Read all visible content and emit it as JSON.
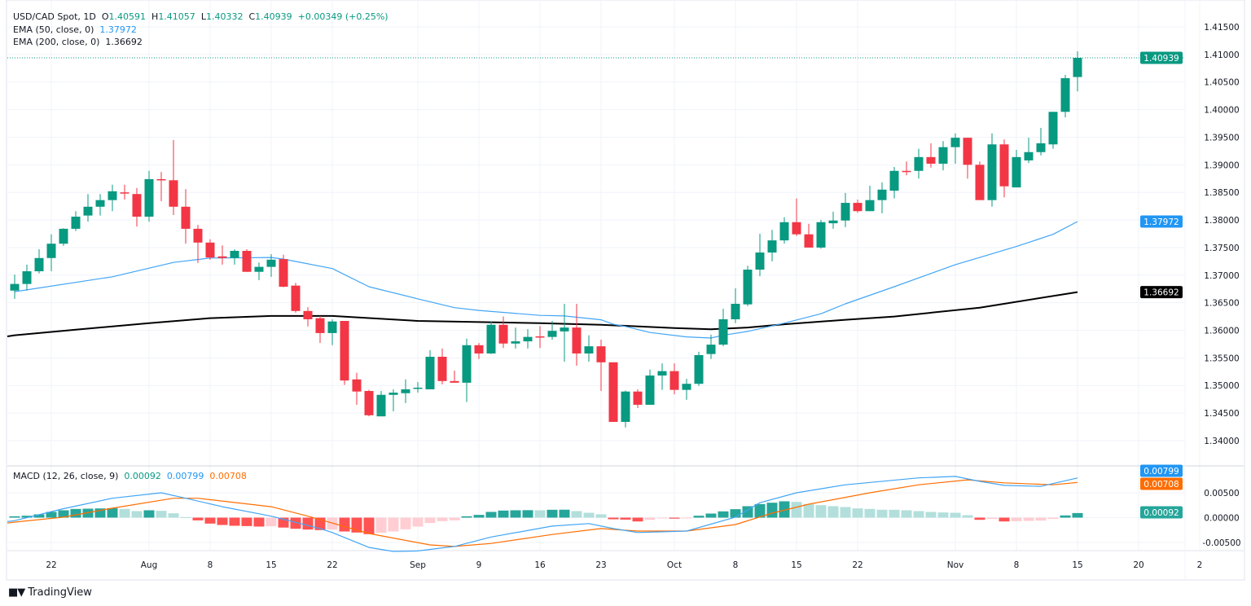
{
  "header": {
    "symbol": "USD/CAD Spot, 1D",
    "o_label": "O",
    "o": "1.40591",
    "h_label": "H",
    "h": "1.41057",
    "l_label": "L",
    "l": "1.40332",
    "c_label": "C",
    "c": "1.40939",
    "change": "+0.00349 (+0.25%)"
  },
  "ema50": {
    "label": "EMA (50, close, 0)",
    "value": "1.37972",
    "color": "#2196f3"
  },
  "ema200": {
    "label": "EMA (200, close, 0)",
    "value": "1.36692",
    "color": "#000000"
  },
  "macd_legend": {
    "label": "MACD (12, 26, close, 9)",
    "hist": "0.00092",
    "macd": "0.00799",
    "signal": "0.00708"
  },
  "footer": {
    "brand": "TradingView",
    "logo_text": "TV"
  },
  "colors": {
    "up": "#089981",
    "down": "#f23645",
    "hist_up_strong": "#26a69a",
    "hist_up_weak": "#b2dfdb",
    "hist_down_strong": "#ff5252",
    "hist_down_weak": "#ffcdd2",
    "macd": "#2196f3",
    "signal": "#ff6d00"
  },
  "chart_data": [
    {
      "type": "candlestick",
      "title": "USD/CAD Spot, 1D",
      "ylim": [
        1.3375,
        1.4175
      ],
      "y_ticks": [
        "1.41500",
        "1.41000",
        "1.40500",
        "1.40000",
        "1.39500",
        "1.39000",
        "1.38500",
        "1.38000",
        "1.37500",
        "1.37000",
        "1.36500",
        "1.36000",
        "1.35500",
        "1.35000",
        "1.34500",
        "1.34000"
      ],
      "x_ticks": [
        {
          "index": 3,
          "label": "22"
        },
        {
          "index": 11,
          "label": "Aug"
        },
        {
          "index": 16,
          "label": "8"
        },
        {
          "index": 21,
          "label": "15"
        },
        {
          "index": 26,
          "label": "22"
        },
        {
          "index": 33,
          "label": "Sep"
        },
        {
          "index": 38,
          "label": "9"
        },
        {
          "index": 43,
          "label": "16"
        },
        {
          "index": 48,
          "label": "23"
        },
        {
          "index": 54,
          "label": "Oct"
        },
        {
          "index": 59,
          "label": "8"
        },
        {
          "index": 64,
          "label": "15"
        },
        {
          "index": 69,
          "label": "22"
        },
        {
          "index": 77,
          "label": "Nov"
        },
        {
          "index": 82,
          "label": "8"
        },
        {
          "index": 87,
          "label": "15"
        },
        {
          "index": 92,
          "label": "20"
        },
        {
          "index": 97,
          "label": "2"
        }
      ],
      "ohlc": [
        [
          1.3672,
          1.3701,
          1.3657,
          1.3684
        ],
        [
          1.3684,
          1.3719,
          1.3672,
          1.3707
        ],
        [
          1.3707,
          1.3747,
          1.3703,
          1.3731
        ],
        [
          1.3731,
          1.3774,
          1.3707,
          1.3757
        ],
        [
          1.3757,
          1.3785,
          1.3753,
          1.3784
        ],
        [
          1.3784,
          1.3816,
          1.378,
          1.3806
        ],
        [
          1.3808,
          1.3847,
          1.3797,
          1.3824
        ],
        [
          1.3824,
          1.3847,
          1.3808,
          1.3836
        ],
        [
          1.3836,
          1.3864,
          1.3816,
          1.3852
        ],
        [
          1.385,
          1.3864,
          1.3837,
          1.3849
        ],
        [
          1.3847,
          1.3858,
          1.3788,
          1.3806
        ],
        [
          1.3806,
          1.3889,
          1.3797,
          1.3874
        ],
        [
          1.3874,
          1.3887,
          1.3834,
          1.3872
        ],
        [
          1.3872,
          1.3945,
          1.3809,
          1.3824
        ],
        [
          1.3824,
          1.3856,
          1.3757,
          1.3784
        ],
        [
          1.3784,
          1.3791,
          1.3722,
          1.3759
        ],
        [
          1.3759,
          1.3765,
          1.3728,
          1.3732
        ],
        [
          1.3734,
          1.3754,
          1.3719,
          1.3731
        ],
        [
          1.3731,
          1.3747,
          1.3719,
          1.3744
        ],
        [
          1.3744,
          1.3747,
          1.3706,
          1.3706
        ],
        [
          1.3706,
          1.3723,
          1.3691,
          1.3715
        ],
        [
          1.3715,
          1.3738,
          1.3697,
          1.3728
        ],
        [
          1.3729,
          1.3737,
          1.3678,
          1.3679
        ],
        [
          1.3681,
          1.3686,
          1.3632,
          1.3635
        ],
        [
          1.3635,
          1.3642,
          1.3607,
          1.362
        ],
        [
          1.3622,
          1.3626,
          1.3577,
          1.3595
        ],
        [
          1.3595,
          1.362,
          1.3573,
          1.3616
        ],
        [
          1.3617,
          1.3617,
          1.3501,
          1.3509
        ],
        [
          1.3511,
          1.3523,
          1.3465,
          1.3489
        ],
        [
          1.349,
          1.3492,
          1.3444,
          1.3446
        ],
        [
          1.3444,
          1.349,
          1.3444,
          1.3483
        ],
        [
          1.3483,
          1.3493,
          1.3453,
          1.3487
        ],
        [
          1.3486,
          1.3511,
          1.3468,
          1.3493
        ],
        [
          1.3495,
          1.3506,
          1.3487,
          1.3496
        ],
        [
          1.3493,
          1.3564,
          1.3493,
          1.3552
        ],
        [
          1.3552,
          1.3567,
          1.3502,
          1.3508
        ],
        [
          1.3508,
          1.3527,
          1.3505,
          1.3505
        ],
        [
          1.3505,
          1.3585,
          1.347,
          1.3573
        ],
        [
          1.3573,
          1.3577,
          1.3548,
          1.3558
        ],
        [
          1.3558,
          1.3616,
          1.3557,
          1.361
        ],
        [
          1.361,
          1.3625,
          1.3568,
          1.3576
        ],
        [
          1.3576,
          1.3605,
          1.3567,
          1.358
        ],
        [
          1.358,
          1.3602,
          1.3567,
          1.3588
        ],
        [
          1.3589,
          1.3608,
          1.3568,
          1.3588
        ],
        [
          1.3588,
          1.3617,
          1.3583,
          1.3599
        ],
        [
          1.3598,
          1.3648,
          1.3543,
          1.3605
        ],
        [
          1.3605,
          1.3648,
          1.3536,
          1.3558
        ],
        [
          1.3558,
          1.3591,
          1.3543,
          1.3571
        ],
        [
          1.3571,
          1.3583,
          1.349,
          1.3542
        ],
        [
          1.3542,
          1.3542,
          1.3434,
          1.3434
        ],
        [
          1.3434,
          1.3491,
          1.3424,
          1.3489
        ],
        [
          1.3489,
          1.3493,
          1.3459,
          1.3465
        ],
        [
          1.3465,
          1.3529,
          1.3465,
          1.3518
        ],
        [
          1.3518,
          1.354,
          1.3492,
          1.3526
        ],
        [
          1.3526,
          1.354,
          1.3484,
          1.3492
        ],
        [
          1.3492,
          1.3512,
          1.3474,
          1.3503
        ],
        [
          1.3503,
          1.3561,
          1.3499,
          1.3555
        ],
        [
          1.3557,
          1.3592,
          1.3548,
          1.3574
        ],
        [
          1.3574,
          1.3639,
          1.3571,
          1.362
        ],
        [
          1.362,
          1.3676,
          1.3613,
          1.3648
        ],
        [
          1.3647,
          1.3717,
          1.3644,
          1.371
        ],
        [
          1.371,
          1.3775,
          1.3698,
          1.3741
        ],
        [
          1.3741,
          1.3782,
          1.3725,
          1.3763
        ],
        [
          1.3763,
          1.3805,
          1.3757,
          1.3796
        ],
        [
          1.3796,
          1.3839,
          1.3771,
          1.3774
        ],
        [
          1.3774,
          1.3793,
          1.375,
          1.375
        ],
        [
          1.375,
          1.38,
          1.3748,
          1.3796
        ],
        [
          1.3794,
          1.3815,
          1.3784,
          1.3799
        ],
        [
          1.3799,
          1.3849,
          1.3787,
          1.3831
        ],
        [
          1.3831,
          1.3837,
          1.3813,
          1.3816
        ],
        [
          1.3816,
          1.3862,
          1.3816,
          1.3836
        ],
        [
          1.3836,
          1.3868,
          1.3812,
          1.3855
        ],
        [
          1.3853,
          1.3896,
          1.3839,
          1.3889
        ],
        [
          1.3889,
          1.3906,
          1.3881,
          1.3887
        ],
        [
          1.3889,
          1.3929,
          1.3875,
          1.3914
        ],
        [
          1.3914,
          1.3939,
          1.3895,
          1.3902
        ],
        [
          1.3902,
          1.3943,
          1.389,
          1.3932
        ],
        [
          1.3932,
          1.3957,
          1.3902,
          1.3949
        ],
        [
          1.3949,
          1.3949,
          1.3875,
          1.39
        ],
        [
          1.39,
          1.3906,
          1.3836,
          1.3836
        ],
        [
          1.3836,
          1.3957,
          1.3824,
          1.3937
        ],
        [
          1.3937,
          1.3946,
          1.3841,
          1.3861
        ],
        [
          1.3859,
          1.3927,
          1.3859,
          1.3914
        ],
        [
          1.3908,
          1.3949,
          1.3903,
          1.3923
        ],
        [
          1.3923,
          1.3967,
          1.3917,
          1.3939
        ],
        [
          1.3937,
          1.3996,
          1.3929,
          1.3996
        ],
        [
          1.3996,
          1.4063,
          1.3986,
          1.4057
        ],
        [
          1.40591,
          1.41057,
          1.40332,
          1.40939
        ]
      ],
      "ema50": [
        [
          0,
          1.367
        ],
        [
          8,
          1.3697
        ],
        [
          13,
          1.3723
        ],
        [
          16,
          1.3731
        ],
        [
          21,
          1.3732
        ],
        [
          22,
          1.3729
        ],
        [
          26,
          1.3712
        ],
        [
          29,
          1.3679
        ],
        [
          33,
          1.3657
        ],
        [
          36,
          1.3641
        ],
        [
          38,
          1.3636
        ],
        [
          43,
          1.3627
        ],
        [
          45,
          1.3626
        ],
        [
          48,
          1.3619
        ],
        [
          49,
          1.3611
        ],
        [
          50,
          1.3607
        ],
        [
          52,
          1.3596
        ],
        [
          55,
          1.3588
        ],
        [
          57,
          1.3586
        ],
        [
          58,
          1.3591
        ],
        [
          60,
          1.3598
        ],
        [
          63,
          1.3613
        ],
        [
          66,
          1.363
        ],
        [
          68,
          1.3648
        ],
        [
          72,
          1.3679
        ],
        [
          77,
          1.3719
        ],
        [
          79,
          1.3732
        ],
        [
          82,
          1.3752
        ],
        [
          85,
          1.3774
        ],
        [
          87,
          1.37972
        ]
      ],
      "ema200": [
        [
          -1,
          1.3589
        ],
        [
          0,
          1.3591
        ],
        [
          5,
          1.3601
        ],
        [
          11,
          1.3613
        ],
        [
          16,
          1.3622
        ],
        [
          21,
          1.3626
        ],
        [
          26,
          1.3626
        ],
        [
          33,
          1.3617
        ],
        [
          43,
          1.3613
        ],
        [
          48,
          1.361
        ],
        [
          54,
          1.3604
        ],
        [
          57,
          1.3602
        ],
        [
          60,
          1.3605
        ],
        [
          63,
          1.3611
        ],
        [
          68,
          1.3619
        ],
        [
          72,
          1.3625
        ],
        [
          79,
          1.3641
        ],
        [
          87,
          1.36692
        ]
      ],
      "last_price": 1.40939
    },
    {
      "type": "bar",
      "title": "MACD (12, 26, close, 9)",
      "ylim": [
        -0.0068,
        0.0068
      ],
      "y_ticks": [
        {
          "value": 0.005,
          "label": "0.00500"
        },
        {
          "value": 0,
          "label": "0.00000"
        },
        {
          "value": -0.005,
          "label": "-0.00500"
        }
      ],
      "histogram": [
        0.00027,
        0.00038,
        0.00066,
        0.00115,
        0.00148,
        0.00175,
        0.0018,
        0.00185,
        0.0019,
        0.00175,
        0.00131,
        0.00148,
        0.00137,
        0.00087,
        0.0001,
        -0.00055,
        -0.0012,
        -0.00148,
        -0.00164,
        -0.0017,
        -0.0018,
        -0.00175,
        -0.002,
        -0.00224,
        -0.0024,
        -0.00251,
        -0.0024,
        -0.00279,
        -0.003,
        -0.00333,
        -0.00306,
        -0.00279,
        -0.00235,
        -0.0018,
        -0.00109,
        -0.00071,
        -0.00055,
        0.00027,
        0.00055,
        0.00115,
        0.00142,
        0.00148,
        0.0015,
        0.00147,
        0.00158,
        0.0016,
        0.00131,
        0.00098,
        0.00066,
        -0.00033,
        -0.0004,
        -0.00077,
        -0.00044,
        -0.00015,
        -0.0002,
        -0.0001,
        0.00038,
        0.00082,
        0.00126,
        0.0017,
        0.0023,
        0.00273,
        0.003,
        0.00328,
        0.00317,
        0.00273,
        0.00251,
        0.0023,
        0.00213,
        0.00186,
        0.00175,
        0.00159,
        0.00158,
        0.00148,
        0.00131,
        0.00115,
        0.00104,
        0.00098,
        0.00049,
        -0.00044,
        -0.00027,
        -0.00077,
        -0.00071,
        -0.00066,
        -0.0006,
        -0.00027,
        0.00044,
        0.00092
      ],
      "macd": [
        [
          -1,
          -0.0008
        ],
        [
          0,
          -0.0006
        ],
        [
          4,
          0.0018
        ],
        [
          8,
          0.0039
        ],
        [
          12,
          0.005
        ],
        [
          14,
          0.0039
        ],
        [
          17,
          0.0022
        ],
        [
          21,
          0.0003
        ],
        [
          25,
          -0.0022
        ],
        [
          26,
          -0.003
        ],
        [
          29,
          -0.006
        ],
        [
          31,
          -0.0068
        ],
        [
          33,
          -0.0067
        ],
        [
          36,
          -0.0058
        ],
        [
          39,
          -0.0039
        ],
        [
          44,
          -0.0017
        ],
        [
          47,
          -0.0012
        ],
        [
          49,
          -0.0022
        ],
        [
          51,
          -0.003
        ],
        [
          55,
          -0.0027
        ],
        [
          59,
          0.0001
        ],
        [
          61,
          0.003
        ],
        [
          64,
          0.005
        ],
        [
          68,
          0.0066
        ],
        [
          74,
          0.008
        ],
        [
          77,
          0.0083
        ],
        [
          79,
          0.0073
        ],
        [
          81,
          0.0065
        ],
        [
          84,
          0.0063
        ],
        [
          87,
          0.00799
        ]
      ],
      "signal": [
        [
          -1,
          -0.0011
        ],
        [
          0,
          -0.0009
        ],
        [
          4,
          0.0001
        ],
        [
          8,
          0.0019
        ],
        [
          13,
          0.0039
        ],
        [
          15,
          0.0039
        ],
        [
          21,
          0.0022
        ],
        [
          24,
          0.0003
        ],
        [
          29,
          -0.0032
        ],
        [
          34,
          -0.0055
        ],
        [
          36,
          -0.0058
        ],
        [
          39,
          -0.0052
        ],
        [
          44,
          -0.0034
        ],
        [
          48,
          -0.0022
        ],
        [
          51,
          -0.0027
        ],
        [
          55,
          -0.0027
        ],
        [
          59,
          -0.0014
        ],
        [
          62,
          0.0009
        ],
        [
          65,
          0.0027
        ],
        [
          70,
          0.005
        ],
        [
          74,
          0.0066
        ],
        [
          78,
          0.0076
        ],
        [
          81,
          0.007
        ],
        [
          85,
          0.0066
        ],
        [
          87,
          0.00708
        ]
      ]
    }
  ]
}
